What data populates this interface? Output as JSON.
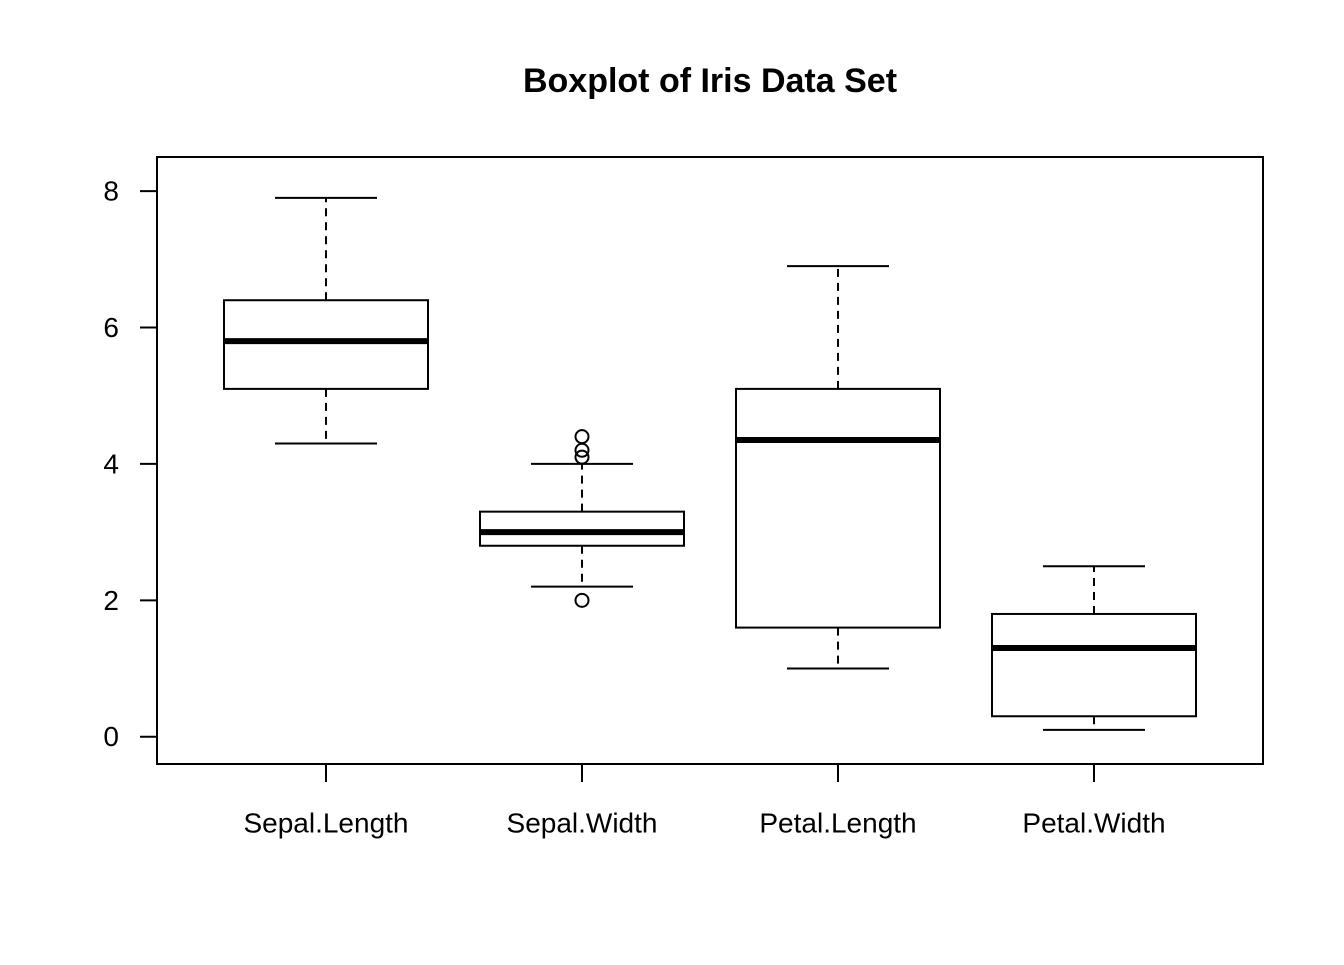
{
  "chart_data": {
    "type": "boxplot",
    "title": "Boxplot of Iris Data Set",
    "xlabel": "",
    "ylabel": "",
    "ylim": [
      -0.4,
      8.5
    ],
    "y_ticks": [
      0,
      2,
      4,
      6,
      8
    ],
    "categories": [
      "Sepal.Length",
      "Sepal.Width",
      "Petal.Length",
      "Petal.Width"
    ],
    "boxes": [
      {
        "category": "Sepal.Length",
        "whisker_low": 4.3,
        "q1": 5.1,
        "median": 5.8,
        "q3": 6.4,
        "whisker_high": 7.9,
        "outliers": []
      },
      {
        "category": "Sepal.Width",
        "whisker_low": 2.2,
        "q1": 2.8,
        "median": 3.0,
        "q3": 3.3,
        "whisker_high": 4.0,
        "outliers": [
          2.0,
          4.1,
          4.2,
          4.4
        ]
      },
      {
        "category": "Petal.Length",
        "whisker_low": 1.0,
        "q1": 1.6,
        "median": 4.35,
        "q3": 5.1,
        "whisker_high": 6.9,
        "outliers": []
      },
      {
        "category": "Petal.Width",
        "whisker_low": 0.1,
        "q1": 0.3,
        "median": 1.3,
        "q3": 1.8,
        "whisker_high": 2.5,
        "outliers": []
      }
    ],
    "grid": false,
    "legend": "none"
  }
}
